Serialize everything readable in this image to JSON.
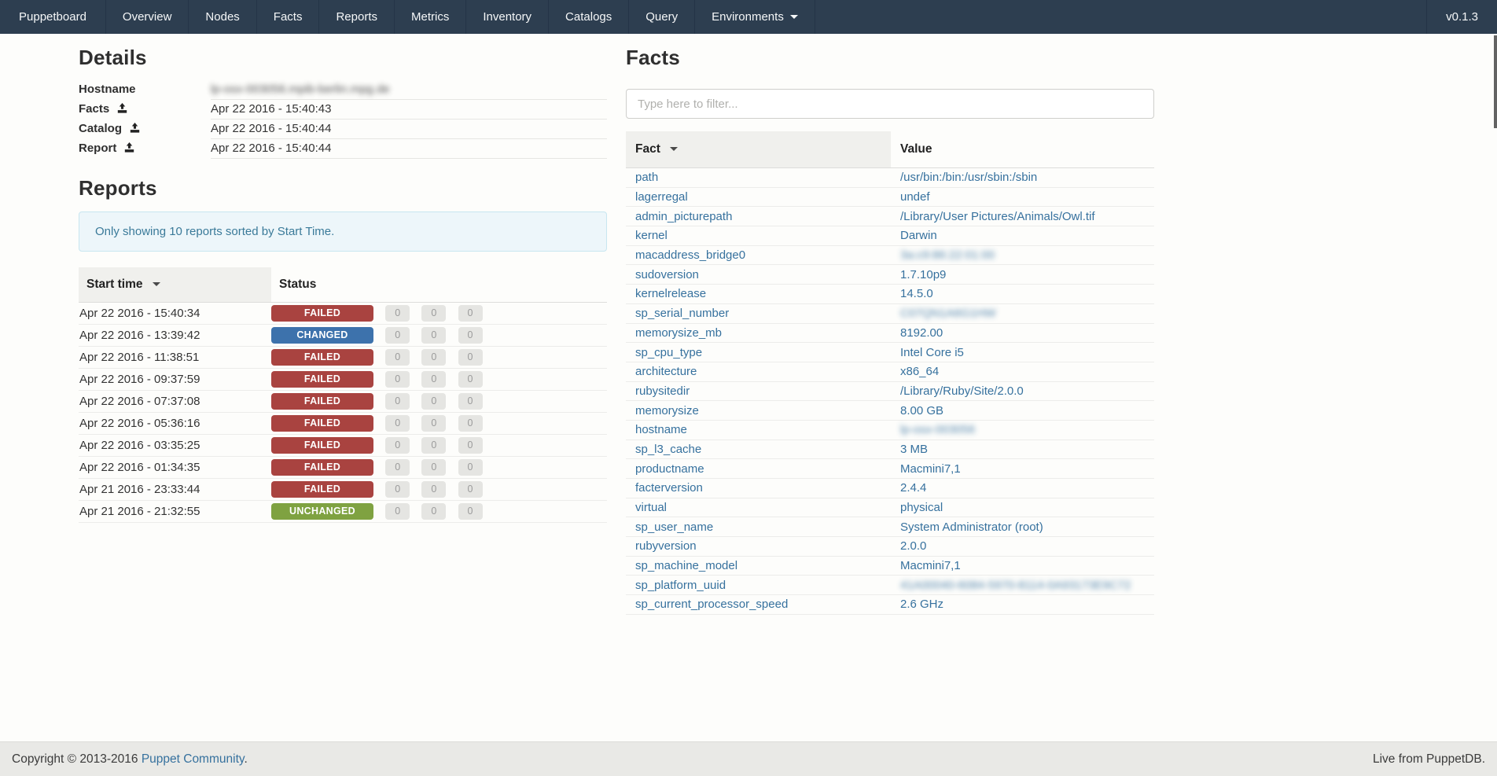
{
  "navbar": {
    "brand": "Puppetboard",
    "items": [
      "Overview",
      "Nodes",
      "Facts",
      "Reports",
      "Metrics",
      "Inventory",
      "Catalogs",
      "Query"
    ],
    "environments_label": "Environments",
    "version": "v0.1.3"
  },
  "details": {
    "title": "Details",
    "rows": [
      {
        "label": "Hostname",
        "value": "lp-osx-003056.mpib-berlin.mpg.de",
        "blurred": true,
        "icon": false
      },
      {
        "label": "Facts",
        "value": "Apr 22 2016 - 15:40:43",
        "blurred": false,
        "icon": true
      },
      {
        "label": "Catalog",
        "value": "Apr 22 2016 - 15:40:44",
        "blurred": false,
        "icon": true
      },
      {
        "label": "Report",
        "value": "Apr 22 2016 - 15:40:44",
        "blurred": false,
        "icon": true
      }
    ]
  },
  "reports": {
    "title": "Reports",
    "alert": "Only showing 10 reports sorted by Start Time.",
    "columns": {
      "start_time": "Start time",
      "status": "Status"
    },
    "rows": [
      {
        "start": "Apr 22 2016 - 15:40:34",
        "status": "FAILED",
        "counts": [
          "0",
          "0",
          "0"
        ]
      },
      {
        "start": "Apr 22 2016 - 13:39:42",
        "status": "CHANGED",
        "counts": [
          "0",
          "0",
          "0"
        ]
      },
      {
        "start": "Apr 22 2016 - 11:38:51",
        "status": "FAILED",
        "counts": [
          "0",
          "0",
          "0"
        ]
      },
      {
        "start": "Apr 22 2016 - 09:37:59",
        "status": "FAILED",
        "counts": [
          "0",
          "0",
          "0"
        ]
      },
      {
        "start": "Apr 22 2016 - 07:37:08",
        "status": "FAILED",
        "counts": [
          "0",
          "0",
          "0"
        ]
      },
      {
        "start": "Apr 22 2016 - 05:36:16",
        "status": "FAILED",
        "counts": [
          "0",
          "0",
          "0"
        ]
      },
      {
        "start": "Apr 22 2016 - 03:35:25",
        "status": "FAILED",
        "counts": [
          "0",
          "0",
          "0"
        ]
      },
      {
        "start": "Apr 22 2016 - 01:34:35",
        "status": "FAILED",
        "counts": [
          "0",
          "0",
          "0"
        ]
      },
      {
        "start": "Apr 21 2016 - 23:33:44",
        "status": "FAILED",
        "counts": [
          "0",
          "0",
          "0"
        ]
      },
      {
        "start": "Apr 21 2016 - 21:32:55",
        "status": "UNCHANGED",
        "counts": [
          "0",
          "0",
          "0"
        ]
      }
    ]
  },
  "facts": {
    "title": "Facts",
    "filter_placeholder": "Type here to filter...",
    "columns": {
      "fact": "Fact",
      "value": "Value"
    },
    "rows": [
      {
        "name": "path",
        "value": "/usr/bin:/bin:/usr/sbin:/sbin",
        "blurred": false
      },
      {
        "name": "lagerregal",
        "value": "undef",
        "blurred": false
      },
      {
        "name": "admin_picturepath",
        "value": "/Library/User Pictures/Animals/Owl.tif",
        "blurred": false
      },
      {
        "name": "kernel",
        "value": "Darwin",
        "blurred": false
      },
      {
        "name": "macaddress_bridge0",
        "value": "3a:c9:86:22:01:00",
        "blurred": true
      },
      {
        "name": "sudoversion",
        "value": "1.7.10p9",
        "blurred": false
      },
      {
        "name": "kernelrelease",
        "value": "14.5.0",
        "blurred": false
      },
      {
        "name": "sp_serial_number",
        "value": "C07QN1A6G1HW",
        "blurred": true
      },
      {
        "name": "memorysize_mb",
        "value": "8192.00",
        "blurred": false
      },
      {
        "name": "sp_cpu_type",
        "value": "Intel Core i5",
        "blurred": false
      },
      {
        "name": "architecture",
        "value": "x86_64",
        "blurred": false
      },
      {
        "name": "rubysitedir",
        "value": "/Library/Ruby/Site/2.0.0",
        "blurred": false
      },
      {
        "name": "memorysize",
        "value": "8.00 GB",
        "blurred": false
      },
      {
        "name": "hostname",
        "value": "lp-osx-003056",
        "blurred": true
      },
      {
        "name": "sp_l3_cache",
        "value": "3 MB",
        "blurred": false
      },
      {
        "name": "productname",
        "value": "Macmini7,1",
        "blurred": false
      },
      {
        "name": "facterversion",
        "value": "2.4.4",
        "blurred": false
      },
      {
        "name": "virtual",
        "value": "physical",
        "blurred": false
      },
      {
        "name": "sp_user_name",
        "value": "System Administrator (root)",
        "blurred": false
      },
      {
        "name": "rubyversion",
        "value": "2.0.0",
        "blurred": false
      },
      {
        "name": "sp_machine_model",
        "value": "Macmini7,1",
        "blurred": false
      },
      {
        "name": "sp_platform_uuid",
        "value": "41A00040-6084-5970-8114-0A93173E9C72",
        "blurred": true
      },
      {
        "name": "sp_current_processor_speed",
        "value": "2.6 GHz",
        "blurred": false
      }
    ]
  },
  "footer": {
    "copyright_prefix": "Copyright © 2013-2016 ",
    "copyright_link": "Puppet Community",
    "copyright_suffix": ".",
    "right_text": "Live from PuppetDB."
  },
  "colors": {
    "navbar_bg": "#2d3e50",
    "status_failed": "#a94340",
    "status_changed": "#3d72ac",
    "status_unchanged": "#7fa241",
    "link": "#36719e"
  }
}
